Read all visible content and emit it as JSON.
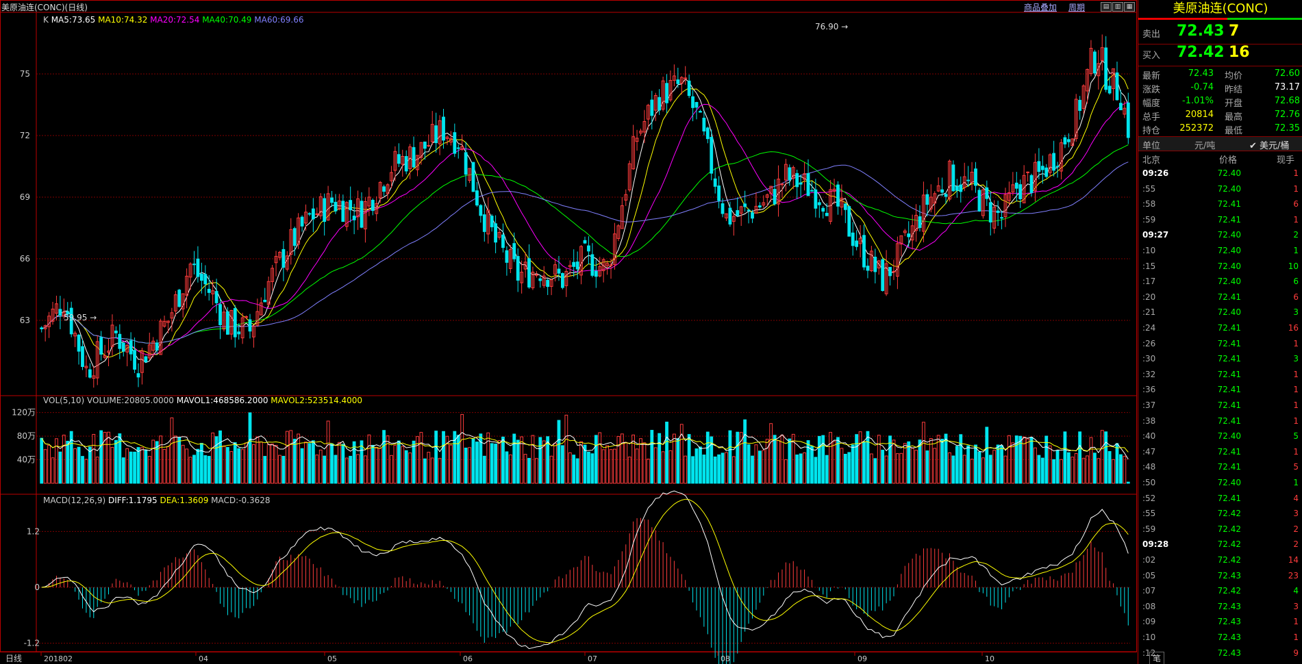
{
  "header": {
    "title": "美原油连(CONC)(日线)",
    "link_overlay": "商品叠加",
    "link_period": "周期"
  },
  "price_panel": {
    "label_k": "K",
    "ma_labels": [
      {
        "text": "MA5:73.65",
        "color": "#ffffff"
      },
      {
        "text": "MA10:74.32",
        "color": "#ffff00"
      },
      {
        "text": "MA20:72.54",
        "color": "#ff00ff"
      },
      {
        "text": "MA40:70.49",
        "color": "#00ff00"
      },
      {
        "text": "MA60:69.66",
        "color": "#8080ff"
      }
    ],
    "yticks": [
      "75",
      "72",
      "69",
      "66",
      "63"
    ],
    "high_label": "76.90",
    "low_label": "59.95"
  },
  "volume_panel": {
    "label": "VOL(5,10)",
    "volume": "VOLUME:20805.0000",
    "mavol1": "MAVOL1:468586.2000",
    "mavol2": "MAVOL2:523514.4000",
    "yticks": [
      "120万",
      "80万",
      "40万"
    ]
  },
  "macd_panel": {
    "label": "MACD(12,26,9)",
    "diff": "DIFF:1.1795",
    "dea": "DEA:1.3609",
    "macd": "MACD:-0.3628",
    "yticks": [
      "1.2",
      "0",
      "-1.2"
    ]
  },
  "x_axis": {
    "period_label": "日线",
    "labels": [
      "201802",
      "04",
      "05",
      "06",
      "07",
      "08",
      "09",
      "10"
    ]
  },
  "colors": {
    "up": "#ff3c3c",
    "down": "#00e5ee",
    "grid": "#800000",
    "ma5": "#ffffff",
    "ma10": "#ffff00",
    "ma20": "#ff00ff",
    "ma40": "#00ff00",
    "ma60": "#8080ff"
  },
  "chart_data": {
    "type": "candlestick",
    "price": {
      "ylim": [
        59.5,
        77.5
      ],
      "high": 76.9,
      "low": 59.95,
      "last_close": 72.43
    },
    "macd": {
      "ylim": [
        -1.8,
        2.0
      ],
      "diff": 1.1795,
      "dea": 1.3609,
      "macd": -0.3628
    },
    "volume": {
      "ylim": [
        0,
        1300000
      ],
      "volume": 20805,
      "mavol1": 468586.2,
      "mavol2": 523514.4
    }
  },
  "quote": {
    "name": "美原油连(CONC)",
    "sell_label": "卖出",
    "sell_price": "72.43",
    "sell_qty": "7",
    "buy_label": "买入",
    "buy_price": "72.42",
    "buy_qty": "16",
    "stats": [
      {
        "l1": "最新",
        "v1": "72.43",
        "c1": "green",
        "l2": "均价",
        "v2": "72.60",
        "c2": "green"
      },
      {
        "l1": "涨跌",
        "v1": "-0.74",
        "c1": "green",
        "l2": "昨结",
        "v2": "73.17",
        "c2": "white"
      },
      {
        "l1": "幅度",
        "v1": "-1.01%",
        "c1": "green",
        "l2": "开盘",
        "v2": "72.68",
        "c2": "green"
      },
      {
        "l1": "总手",
        "v1": "20814",
        "c1": "yellow",
        "l2": "最高",
        "v2": "72.76",
        "c2": "green"
      },
      {
        "l1": "持仓",
        "v1": "252372",
        "c1": "yellow",
        "l2": "最低",
        "v2": "72.35",
        "c2": "green"
      }
    ],
    "unit_label": "单位",
    "unit_value": "元/吨",
    "unit_selected": "✔ 美元/桶",
    "tick_header": {
      "place": "北京",
      "price": "价格",
      "qty": "现手"
    },
    "ticks": [
      {
        "t": "09:26",
        "p": "72.40",
        "q": "1",
        "qc": "red",
        "bold": true
      },
      {
        "t": ":55",
        "p": "72.40",
        "q": "1",
        "qc": "red"
      },
      {
        "t": ":58",
        "p": "72.41",
        "q": "6",
        "qc": "red"
      },
      {
        "t": ":59",
        "p": "72.41",
        "q": "1",
        "qc": "red"
      },
      {
        "t": "09:27",
        "p": "72.40",
        "q": "2",
        "qc": "green",
        "bold": true
      },
      {
        "t": ":10",
        "p": "72.40",
        "q": "1",
        "qc": "green"
      },
      {
        "t": ":15",
        "p": "72.40",
        "q": "10",
        "qc": "green"
      },
      {
        "t": ":17",
        "p": "72.40",
        "q": "6",
        "qc": "green"
      },
      {
        "t": ":20",
        "p": "72.41",
        "q": "6",
        "qc": "red"
      },
      {
        "t": ":21",
        "p": "72.40",
        "q": "3",
        "qc": "green"
      },
      {
        "t": ":24",
        "p": "72.41",
        "q": "16",
        "qc": "red"
      },
      {
        "t": ":26",
        "p": "72.41",
        "q": "1",
        "qc": "red"
      },
      {
        "t": ":30",
        "p": "72.41",
        "q": "3",
        "qc": "green"
      },
      {
        "t": ":32",
        "p": "72.41",
        "q": "1",
        "qc": "red"
      },
      {
        "t": ":36",
        "p": "72.41",
        "q": "1",
        "qc": "red"
      },
      {
        "t": ":37",
        "p": "72.41",
        "q": "1",
        "qc": "red"
      },
      {
        "t": ":38",
        "p": "72.41",
        "q": "1",
        "qc": "red"
      },
      {
        "t": ":40",
        "p": "72.40",
        "q": "5",
        "qc": "green"
      },
      {
        "t": ":47",
        "p": "72.41",
        "q": "1",
        "qc": "red"
      },
      {
        "t": ":48",
        "p": "72.41",
        "q": "5",
        "qc": "red"
      },
      {
        "t": ":50",
        "p": "72.40",
        "q": "1",
        "qc": "green"
      },
      {
        "t": ":52",
        "p": "72.41",
        "q": "4",
        "qc": "red"
      },
      {
        "t": ":55",
        "p": "72.42",
        "q": "3",
        "qc": "red"
      },
      {
        "t": ":59",
        "p": "72.42",
        "q": "2",
        "qc": "red"
      },
      {
        "t": "09:28",
        "p": "72.42",
        "q": "2",
        "qc": "red",
        "bold": true
      },
      {
        "t": ":02",
        "p": "72.42",
        "q": "14",
        "qc": "red"
      },
      {
        "t": ":05",
        "p": "72.43",
        "q": "23",
        "qc": "red"
      },
      {
        "t": ":07",
        "p": "72.42",
        "q": "4",
        "qc": "green"
      },
      {
        "t": ":08",
        "p": "72.43",
        "q": "3",
        "qc": "red"
      },
      {
        "t": ":09",
        "p": "72.43",
        "q": "1",
        "qc": "red"
      },
      {
        "t": ":10",
        "p": "72.43",
        "q": "1",
        "qc": "red"
      },
      {
        "t": ":12",
        "p": "72.43",
        "q": "9",
        "qc": "red"
      }
    ],
    "bottom_tab": "笔"
  }
}
